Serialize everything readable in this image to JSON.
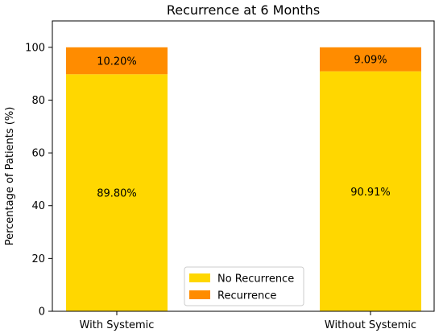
{
  "chart_data": {
    "type": "bar",
    "stacked": true,
    "title": "Recurrence at 6 Months",
    "xlabel": "",
    "ylabel": "Percentage of Patients (%)",
    "ylim": [
      0,
      110
    ],
    "yticks": [
      "0",
      "20",
      "40",
      "60",
      "80",
      "100"
    ],
    "categories": [
      "With Systemic",
      "Without Systemic"
    ],
    "series": [
      {
        "name": "No Recurrence",
        "values": [
          89.8,
          90.91
        ],
        "labels": [
          "89.80%",
          "90.91%"
        ],
        "color": "#FFD700"
      },
      {
        "name": "Recurrence",
        "values": [
          10.2,
          9.09
        ],
        "labels": [
          "10.20%",
          "9.09%"
        ],
        "color": "#FF8C00"
      }
    ],
    "legend_position": "bottom-center",
    "grid": false
  }
}
